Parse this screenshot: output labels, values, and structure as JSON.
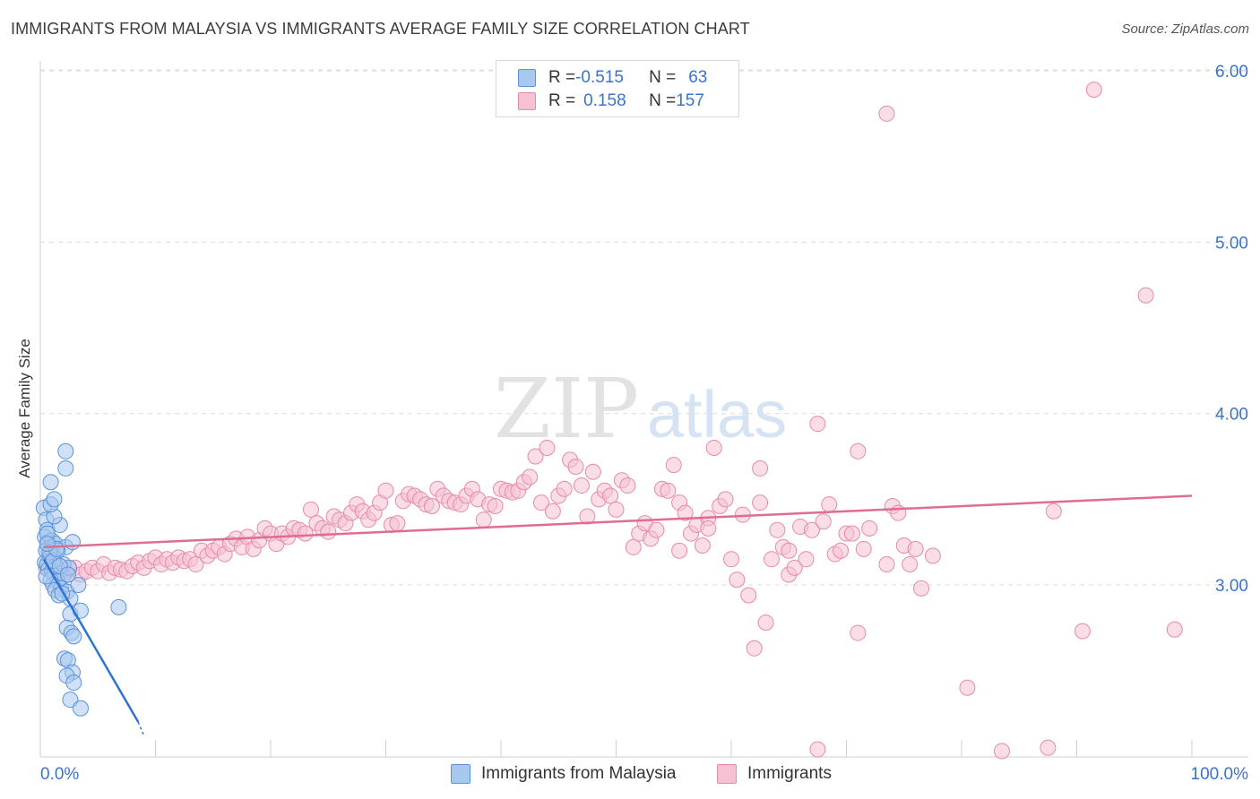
{
  "header": {
    "title": "IMMIGRANTS FROM MALAYSIA VS IMMIGRANTS AVERAGE FAMILY SIZE CORRELATION CHART",
    "source": "Source: ZipAtlas.com"
  },
  "watermark": {
    "zip": "ZIP",
    "atlas": "atlas"
  },
  "legend": {
    "rows": [
      {
        "r_label": "R = ",
        "r_value": "-0.515",
        "n_label": "N = ",
        "n_value": "63"
      },
      {
        "r_label": "R = ",
        "r_value": "0.158",
        "n_label": "N = ",
        "n_value": "157"
      }
    ],
    "bottom": [
      "Immigrants from Malaysia",
      "Immigrants"
    ]
  },
  "colors": {
    "blue_fill": "#a9c8f0",
    "blue_stroke": "#5b93d9",
    "blue_line": "#2f73d0",
    "pink_fill": "#f6c1d3",
    "pink_stroke": "#e68aab",
    "pink_line": "#e06c94",
    "tick_text": "#3b73c8",
    "grid": "#dcdcdc"
  },
  "chart_data": {
    "type": "scatter",
    "title": "IMMIGRANTS FROM MALAYSIA VS IMMIGRANTS AVERAGE FAMILY SIZE CORRELATION CHART",
    "xlabel": "",
    "ylabel": "Average Family Size",
    "xlim": [
      0,
      100
    ],
    "ylim": [
      2.05,
      6.2
    ],
    "x_tick_labels": [
      {
        "value": 0,
        "label": "0.0%"
      },
      {
        "value": 100,
        "label": "100.0%"
      }
    ],
    "y_ticks": [
      {
        "value": 3.0,
        "label": "3.00"
      },
      {
        "value": 4.0,
        "label": "4.00"
      },
      {
        "value": 5.0,
        "label": "5.00"
      },
      {
        "value": 6.0,
        "label": "6.00"
      }
    ],
    "x_minor_ticks": [
      10,
      20,
      30,
      40,
      50,
      60,
      70,
      80,
      90,
      100
    ],
    "grid": true,
    "legend_position": "top-center",
    "series": [
      {
        "name": "Immigrants from Malaysia",
        "r": -0.515,
        "n": 63,
        "trend": {
          "x": [
            0.3,
            8.5
          ],
          "y": [
            3.15,
            2.2
          ]
        },
        "trend_dashed": {
          "x": [
            8.5,
            9.0
          ],
          "y": [
            2.2,
            2.12
          ]
        },
        "points": [
          [
            0.3,
            3.45
          ],
          [
            0.5,
            3.38
          ],
          [
            0.6,
            3.32
          ],
          [
            0.4,
            3.28
          ],
          [
            0.7,
            3.25
          ],
          [
            0.9,
            3.22
          ],
          [
            0.5,
            3.2
          ],
          [
            1.0,
            3.18
          ],
          [
            0.8,
            3.16
          ],
          [
            1.2,
            3.15
          ],
          [
            0.4,
            3.13
          ],
          [
            0.6,
            3.12
          ],
          [
            1.4,
            3.1
          ],
          [
            0.7,
            3.09
          ],
          [
            1.0,
            3.08
          ],
          [
            1.6,
            3.07
          ],
          [
            1.2,
            3.06
          ],
          [
            2.0,
            3.05
          ],
          [
            0.9,
            3.03
          ],
          [
            1.5,
            3.02
          ],
          [
            1.1,
            3.0
          ],
          [
            1.8,
            2.98
          ],
          [
            1.3,
            2.97
          ],
          [
            2.3,
            2.96
          ],
          [
            1.6,
            2.94
          ],
          [
            2.6,
            2.92
          ],
          [
            1.0,
            3.26
          ],
          [
            1.3,
            3.24
          ],
          [
            2.2,
            3.22
          ],
          [
            0.6,
            3.3
          ],
          [
            1.7,
            3.35
          ],
          [
            1.2,
            3.4
          ],
          [
            0.9,
            3.47
          ],
          [
            1.2,
            3.5
          ],
          [
            0.9,
            3.6
          ],
          [
            2.2,
            3.68
          ],
          [
            2.2,
            3.78
          ],
          [
            1.5,
            3.2
          ],
          [
            2.0,
            3.12
          ],
          [
            2.5,
            3.1
          ],
          [
            2.8,
            3.25
          ],
          [
            3.3,
            3.0
          ],
          [
            2.6,
            2.83
          ],
          [
            3.5,
            2.85
          ],
          [
            2.3,
            2.75
          ],
          [
            2.7,
            2.72
          ],
          [
            2.9,
            2.7
          ],
          [
            2.1,
            2.57
          ],
          [
            2.4,
            2.56
          ],
          [
            2.8,
            2.49
          ],
          [
            2.3,
            2.47
          ],
          [
            2.9,
            2.43
          ],
          [
            2.6,
            2.33
          ],
          [
            3.5,
            2.28
          ],
          [
            6.8,
            2.87
          ],
          [
            0.5,
            3.05
          ],
          [
            0.8,
            3.19
          ],
          [
            1.1,
            3.14
          ],
          [
            1.4,
            3.21
          ],
          [
            0.6,
            3.24
          ],
          [
            1.9,
            2.95
          ],
          [
            1.7,
            3.11
          ],
          [
            2.4,
            3.06
          ]
        ]
      },
      {
        "name": "Immigrants",
        "r": 0.158,
        "n": 157,
        "trend": {
          "x": [
            0.3,
            100
          ],
          "y": [
            3.22,
            3.52
          ]
        },
        "points": [
          [
            0.5,
            3.1
          ],
          [
            1.0,
            3.08
          ],
          [
            1.5,
            3.12
          ],
          [
            2.0,
            3.07
          ],
          [
            2.5,
            3.09
          ],
          [
            3.0,
            3.1
          ],
          [
            3.5,
            3.06
          ],
          [
            4.0,
            3.08
          ],
          [
            4.5,
            3.1
          ],
          [
            5.0,
            3.08
          ],
          [
            5.5,
            3.12
          ],
          [
            6.0,
            3.07
          ],
          [
            6.5,
            3.1
          ],
          [
            7.0,
            3.09
          ],
          [
            7.5,
            3.08
          ],
          [
            8.0,
            3.11
          ],
          [
            8.5,
            3.13
          ],
          [
            9.0,
            3.1
          ],
          [
            9.5,
            3.14
          ],
          [
            10.0,
            3.16
          ],
          [
            10.5,
            3.12
          ],
          [
            11.0,
            3.15
          ],
          [
            11.5,
            3.13
          ],
          [
            12.0,
            3.16
          ],
          [
            12.5,
            3.14
          ],
          [
            13.0,
            3.15
          ],
          [
            13.5,
            3.12
          ],
          [
            14.0,
            3.2
          ],
          [
            14.5,
            3.17
          ],
          [
            15.0,
            3.2
          ],
          [
            15.5,
            3.22
          ],
          [
            16.0,
            3.18
          ],
          [
            16.5,
            3.24
          ],
          [
            17.0,
            3.27
          ],
          [
            17.5,
            3.22
          ],
          [
            18.0,
            3.28
          ],
          [
            18.5,
            3.21
          ],
          [
            19.0,
            3.26
          ],
          [
            19.5,
            3.33
          ],
          [
            20.0,
            3.3
          ],
          [
            20.5,
            3.24
          ],
          [
            21.0,
            3.3
          ],
          [
            21.5,
            3.28
          ],
          [
            22.0,
            3.33
          ],
          [
            22.5,
            3.32
          ],
          [
            23.0,
            3.3
          ],
          [
            23.5,
            3.44
          ],
          [
            24.0,
            3.36
          ],
          [
            24.5,
            3.33
          ],
          [
            25.0,
            3.31
          ],
          [
            25.5,
            3.4
          ],
          [
            26.0,
            3.38
          ],
          [
            26.5,
            3.36
          ],
          [
            27.0,
            3.42
          ],
          [
            27.5,
            3.47
          ],
          [
            28.0,
            3.43
          ],
          [
            28.5,
            3.38
          ],
          [
            29.0,
            3.42
          ],
          [
            29.5,
            3.48
          ],
          [
            30.0,
            3.55
          ],
          [
            30.5,
            3.35
          ],
          [
            31.0,
            3.36
          ],
          [
            31.5,
            3.49
          ],
          [
            32.0,
            3.53
          ],
          [
            32.5,
            3.52
          ],
          [
            33.0,
            3.5
          ],
          [
            33.5,
            3.47
          ],
          [
            34.0,
            3.46
          ],
          [
            34.5,
            3.56
          ],
          [
            35.0,
            3.52
          ],
          [
            35.5,
            3.49
          ],
          [
            36.0,
            3.48
          ],
          [
            36.5,
            3.47
          ],
          [
            37.0,
            3.52
          ],
          [
            37.5,
            3.56
          ],
          [
            38.0,
            3.5
          ],
          [
            38.5,
            3.38
          ],
          [
            39.0,
            3.47
          ],
          [
            39.5,
            3.46
          ],
          [
            40.0,
            3.56
          ],
          [
            40.5,
            3.55
          ],
          [
            41.0,
            3.54
          ],
          [
            41.5,
            3.55
          ],
          [
            42.0,
            3.6
          ],
          [
            42.5,
            3.63
          ],
          [
            43.0,
            3.75
          ],
          [
            43.5,
            3.48
          ],
          [
            44.0,
            3.8
          ],
          [
            44.5,
            3.43
          ],
          [
            45.0,
            3.52
          ],
          [
            45.5,
            3.56
          ],
          [
            46.0,
            3.73
          ],
          [
            46.5,
            3.69
          ],
          [
            47.0,
            3.58
          ],
          [
            47.5,
            3.4
          ],
          [
            48.0,
            3.66
          ],
          [
            48.5,
            3.5
          ],
          [
            49.0,
            3.55
          ],
          [
            49.5,
            3.52
          ],
          [
            50.0,
            3.44
          ],
          [
            50.5,
            3.61
          ],
          [
            51.0,
            3.58
          ],
          [
            51.5,
            3.22
          ],
          [
            52.0,
            3.3
          ],
          [
            52.5,
            3.36
          ],
          [
            53.0,
            3.27
          ],
          [
            53.5,
            3.32
          ],
          [
            54.0,
            3.56
          ],
          [
            54.5,
            3.55
          ],
          [
            55.0,
            3.7
          ],
          [
            55.5,
            3.48
          ],
          [
            56.0,
            3.42
          ],
          [
            56.5,
            3.3
          ],
          [
            57.0,
            3.35
          ],
          [
            57.5,
            3.23
          ],
          [
            58.0,
            3.39
          ],
          [
            58.5,
            3.8
          ],
          [
            59.0,
            3.46
          ],
          [
            59.5,
            3.5
          ],
          [
            60.0,
            3.15
          ],
          [
            60.5,
            3.03
          ],
          [
            61.0,
            3.41
          ],
          [
            61.5,
            2.94
          ],
          [
            62.0,
            2.63
          ],
          [
            62.5,
            3.68
          ],
          [
            63.0,
            2.78
          ],
          [
            63.5,
            3.15
          ],
          [
            64.0,
            3.32
          ],
          [
            64.5,
            3.22
          ],
          [
            65.0,
            3.06
          ],
          [
            65.5,
            3.1
          ],
          [
            66.0,
            3.34
          ],
          [
            66.5,
            3.15
          ],
          [
            67.0,
            3.32
          ],
          [
            67.5,
            3.94
          ],
          [
            68.0,
            3.37
          ],
          [
            68.5,
            3.47
          ],
          [
            69.0,
            3.18
          ],
          [
            69.5,
            3.2
          ],
          [
            70.0,
            3.3
          ],
          [
            70.5,
            3.3
          ],
          [
            71.0,
            3.78
          ],
          [
            71.5,
            3.21
          ],
          [
            72.0,
            3.33
          ],
          [
            73.5,
            3.12
          ],
          [
            74.0,
            3.46
          ],
          [
            74.5,
            3.42
          ],
          [
            75.0,
            3.23
          ],
          [
            75.5,
            3.12
          ],
          [
            76.0,
            3.21
          ],
          [
            76.5,
            2.98
          ],
          [
            77.5,
            3.17
          ],
          [
            80.5,
            2.4
          ],
          [
            87.5,
            2.05
          ],
          [
            88.0,
            3.43
          ],
          [
            90.5,
            2.73
          ],
          [
            91.5,
            5.89
          ],
          [
            96.0,
            4.69
          ],
          [
            98.5,
            2.74
          ],
          [
            73.5,
            5.75
          ],
          [
            71.0,
            2.72
          ],
          [
            83.5,
            2.03
          ],
          [
            67.5,
            2.04
          ],
          [
            65.0,
            3.2
          ],
          [
            62.5,
            3.48
          ],
          [
            58.0,
            3.33
          ],
          [
            55.5,
            3.2
          ]
        ]
      }
    ]
  }
}
